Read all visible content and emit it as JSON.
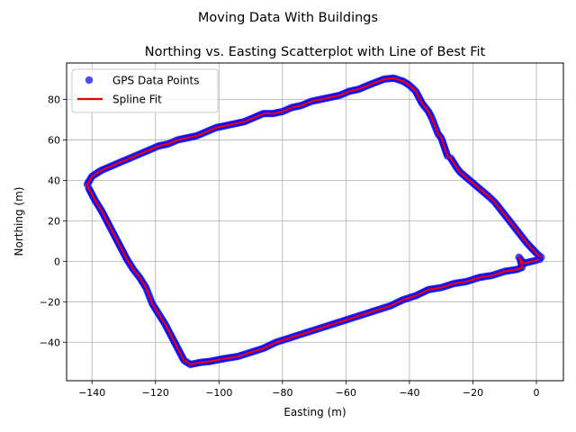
{
  "figure": {
    "suptitle": "Moving Data With Buildings"
  },
  "chart_data": {
    "type": "scatter",
    "title": "Northing vs. Easting Scatterplot with Line of Best Fit",
    "xlabel": "Easting (m)",
    "ylabel": "Northing (m)",
    "xlim": [
      -148,
      8.5
    ],
    "ylim": [
      -59,
      98
    ],
    "xticks": [
      -140,
      -120,
      -100,
      -80,
      -60,
      -40,
      -20,
      0
    ],
    "yticks": [
      -40,
      -20,
      0,
      20,
      40,
      60,
      80
    ],
    "xtick_labels": [
      "−140",
      "−120",
      "−100",
      "−80",
      "−60",
      "−40",
      "−20",
      "0"
    ],
    "ytick_labels": [
      "−40",
      "−20",
      "0",
      "20",
      "40",
      "60",
      "80"
    ],
    "grid": true,
    "legend_position": "top-left",
    "series": [
      {
        "name": "GPS Data Points",
        "kind": "points",
        "color": "#0000ff",
        "points": [
          [
            1.5,
            2
          ],
          [
            0,
            4
          ],
          [
            -3,
            9
          ],
          [
            -6,
            15
          ],
          [
            -8,
            19
          ],
          [
            -11,
            25
          ],
          [
            -13,
            29
          ],
          [
            -15,
            32
          ],
          [
            -18,
            36
          ],
          [
            -21,
            40
          ],
          [
            -24,
            44
          ],
          [
            -25,
            46
          ],
          [
            -27,
            51
          ],
          [
            -28,
            52
          ],
          [
            -30,
            61
          ],
          [
            -31,
            63
          ],
          [
            -32,
            67
          ],
          [
            -33,
            71
          ],
          [
            -34,
            74
          ],
          [
            -36,
            78
          ],
          [
            -38,
            84
          ],
          [
            -40,
            87
          ],
          [
            -42,
            89
          ],
          [
            -45,
            90.5
          ],
          [
            -48,
            90
          ],
          [
            -53,
            87
          ],
          [
            -56,
            85
          ],
          [
            -59,
            84
          ],
          [
            -62,
            82
          ],
          [
            -65,
            81
          ],
          [
            -68,
            80
          ],
          [
            -71,
            79
          ],
          [
            -74,
            77
          ],
          [
            -77,
            76
          ],
          [
            -80,
            74
          ],
          [
            -83,
            73
          ],
          [
            -86,
            73
          ],
          [
            -92,
            69
          ],
          [
            -95,
            68
          ],
          [
            -98,
            67
          ],
          [
            -101,
            66
          ],
          [
            -104,
            64
          ],
          [
            -107,
            62
          ],
          [
            -110,
            61
          ],
          [
            -113,
            60
          ],
          [
            -116,
            58
          ],
          [
            -119,
            57
          ],
          [
            -122,
            55
          ],
          [
            -125,
            53
          ],
          [
            -128,
            51
          ],
          [
            -131,
            49
          ],
          [
            -134,
            47
          ],
          [
            -137,
            45
          ],
          [
            -140,
            42
          ],
          [
            -141.5,
            38
          ],
          [
            -141,
            36
          ],
          [
            -139,
            30
          ],
          [
            -137,
            25
          ],
          [
            -135,
            19
          ],
          [
            -133,
            13
          ],
          [
            -131,
            7
          ],
          [
            -129,
            1
          ],
          [
            -127,
            -4
          ],
          [
            -125,
            -8
          ],
          [
            -123,
            -13
          ],
          [
            -122,
            -17
          ],
          [
            -121,
            -21
          ],
          [
            -119,
            -26
          ],
          [
            -117,
            -31
          ],
          [
            -115,
            -37
          ],
          [
            -113,
            -43
          ],
          [
            -111,
            -49
          ],
          [
            -109,
            -51
          ],
          [
            -106,
            -50
          ],
          [
            -103,
            -49.5
          ],
          [
            -98,
            -48
          ],
          [
            -94,
            -47
          ],
          [
            -90,
            -45
          ],
          [
            -86,
            -43
          ],
          [
            -82,
            -40
          ],
          [
            -78,
            -38
          ],
          [
            -74,
            -36
          ],
          [
            -70,
            -34
          ],
          [
            -66,
            -32
          ],
          [
            -62,
            -30
          ],
          [
            -58,
            -28
          ],
          [
            -54,
            -26
          ],
          [
            -50,
            -24
          ],
          [
            -46,
            -22
          ],
          [
            -42,
            -19
          ],
          [
            -38,
            -17
          ],
          [
            -34,
            -14
          ],
          [
            -30,
            -13
          ],
          [
            -26,
            -11
          ],
          [
            -22,
            -10
          ],
          [
            -18,
            -8
          ],
          [
            -14,
            -7
          ],
          [
            -10,
            -5
          ],
          [
            -6,
            -4
          ],
          [
            -4.5,
            -3
          ],
          [
            -5,
            0
          ],
          [
            -5.5,
            2
          ],
          [
            -4,
            -1
          ],
          [
            0,
            0.5
          ],
          [
            1,
            1
          ]
        ]
      },
      {
        "name": "Spline Fit",
        "kind": "line",
        "color": "#ee0000",
        "points": [
          [
            1.5,
            2
          ],
          [
            0,
            4
          ],
          [
            -3,
            9
          ],
          [
            -6,
            15
          ],
          [
            -8,
            19
          ],
          [
            -11,
            25
          ],
          [
            -13,
            29
          ],
          [
            -15,
            32
          ],
          [
            -18,
            36
          ],
          [
            -21,
            40
          ],
          [
            -24,
            44
          ],
          [
            -25,
            46
          ],
          [
            -27,
            51
          ],
          [
            -28,
            52
          ],
          [
            -30,
            61
          ],
          [
            -31,
            63
          ],
          [
            -32,
            67
          ],
          [
            -33,
            71
          ],
          [
            -34,
            74
          ],
          [
            -36,
            78
          ],
          [
            -38,
            84
          ],
          [
            -40,
            87
          ],
          [
            -42,
            89
          ],
          [
            -45,
            90.5
          ],
          [
            -48,
            90
          ],
          [
            -53,
            87
          ],
          [
            -56,
            85
          ],
          [
            -59,
            84
          ],
          [
            -62,
            82
          ],
          [
            -65,
            81
          ],
          [
            -68,
            80
          ],
          [
            -71,
            79
          ],
          [
            -74,
            77
          ],
          [
            -77,
            76
          ],
          [
            -80,
            74
          ],
          [
            -83,
            73
          ],
          [
            -86,
            73
          ],
          [
            -92,
            69
          ],
          [
            -95,
            68
          ],
          [
            -98,
            67
          ],
          [
            -101,
            66
          ],
          [
            -104,
            64
          ],
          [
            -107,
            62
          ],
          [
            -110,
            61
          ],
          [
            -113,
            60
          ],
          [
            -116,
            58
          ],
          [
            -119,
            57
          ],
          [
            -122,
            55
          ],
          [
            -125,
            53
          ],
          [
            -128,
            51
          ],
          [
            -131,
            49
          ],
          [
            -134,
            47
          ],
          [
            -137,
            45
          ],
          [
            -140,
            42
          ],
          [
            -141.5,
            38
          ],
          [
            -141,
            36
          ],
          [
            -139,
            30
          ],
          [
            -137,
            25
          ],
          [
            -135,
            19
          ],
          [
            -133,
            13
          ],
          [
            -131,
            7
          ],
          [
            -129,
            1
          ],
          [
            -127,
            -4
          ],
          [
            -125,
            -8
          ],
          [
            -123,
            -13
          ],
          [
            -122,
            -17
          ],
          [
            -121,
            -21
          ],
          [
            -119,
            -26
          ],
          [
            -117,
            -31
          ],
          [
            -115,
            -37
          ],
          [
            -113,
            -43
          ],
          [
            -111,
            -49
          ],
          [
            -109,
            -51
          ],
          [
            -106,
            -50
          ],
          [
            -103,
            -49.5
          ],
          [
            -98,
            -48
          ],
          [
            -94,
            -47
          ],
          [
            -90,
            -45
          ],
          [
            -86,
            -43
          ],
          [
            -82,
            -40
          ],
          [
            -78,
            -38
          ],
          [
            -74,
            -36
          ],
          [
            -70,
            -34
          ],
          [
            -66,
            -32
          ],
          [
            -62,
            -30
          ],
          [
            -58,
            -28
          ],
          [
            -54,
            -26
          ],
          [
            -50,
            -24
          ],
          [
            -46,
            -22
          ],
          [
            -42,
            -19
          ],
          [
            -38,
            -17
          ],
          [
            -34,
            -14
          ],
          [
            -30,
            -13
          ],
          [
            -26,
            -11
          ],
          [
            -22,
            -10
          ],
          [
            -18,
            -8
          ],
          [
            -14,
            -7
          ],
          [
            -10,
            -5
          ],
          [
            -6,
            -4
          ],
          [
            -4.5,
            -3
          ],
          [
            -5,
            0
          ],
          [
            -5.5,
            2
          ],
          [
            -4,
            -1
          ],
          [
            0,
            0.5
          ],
          [
            1,
            1
          ]
        ]
      }
    ]
  }
}
